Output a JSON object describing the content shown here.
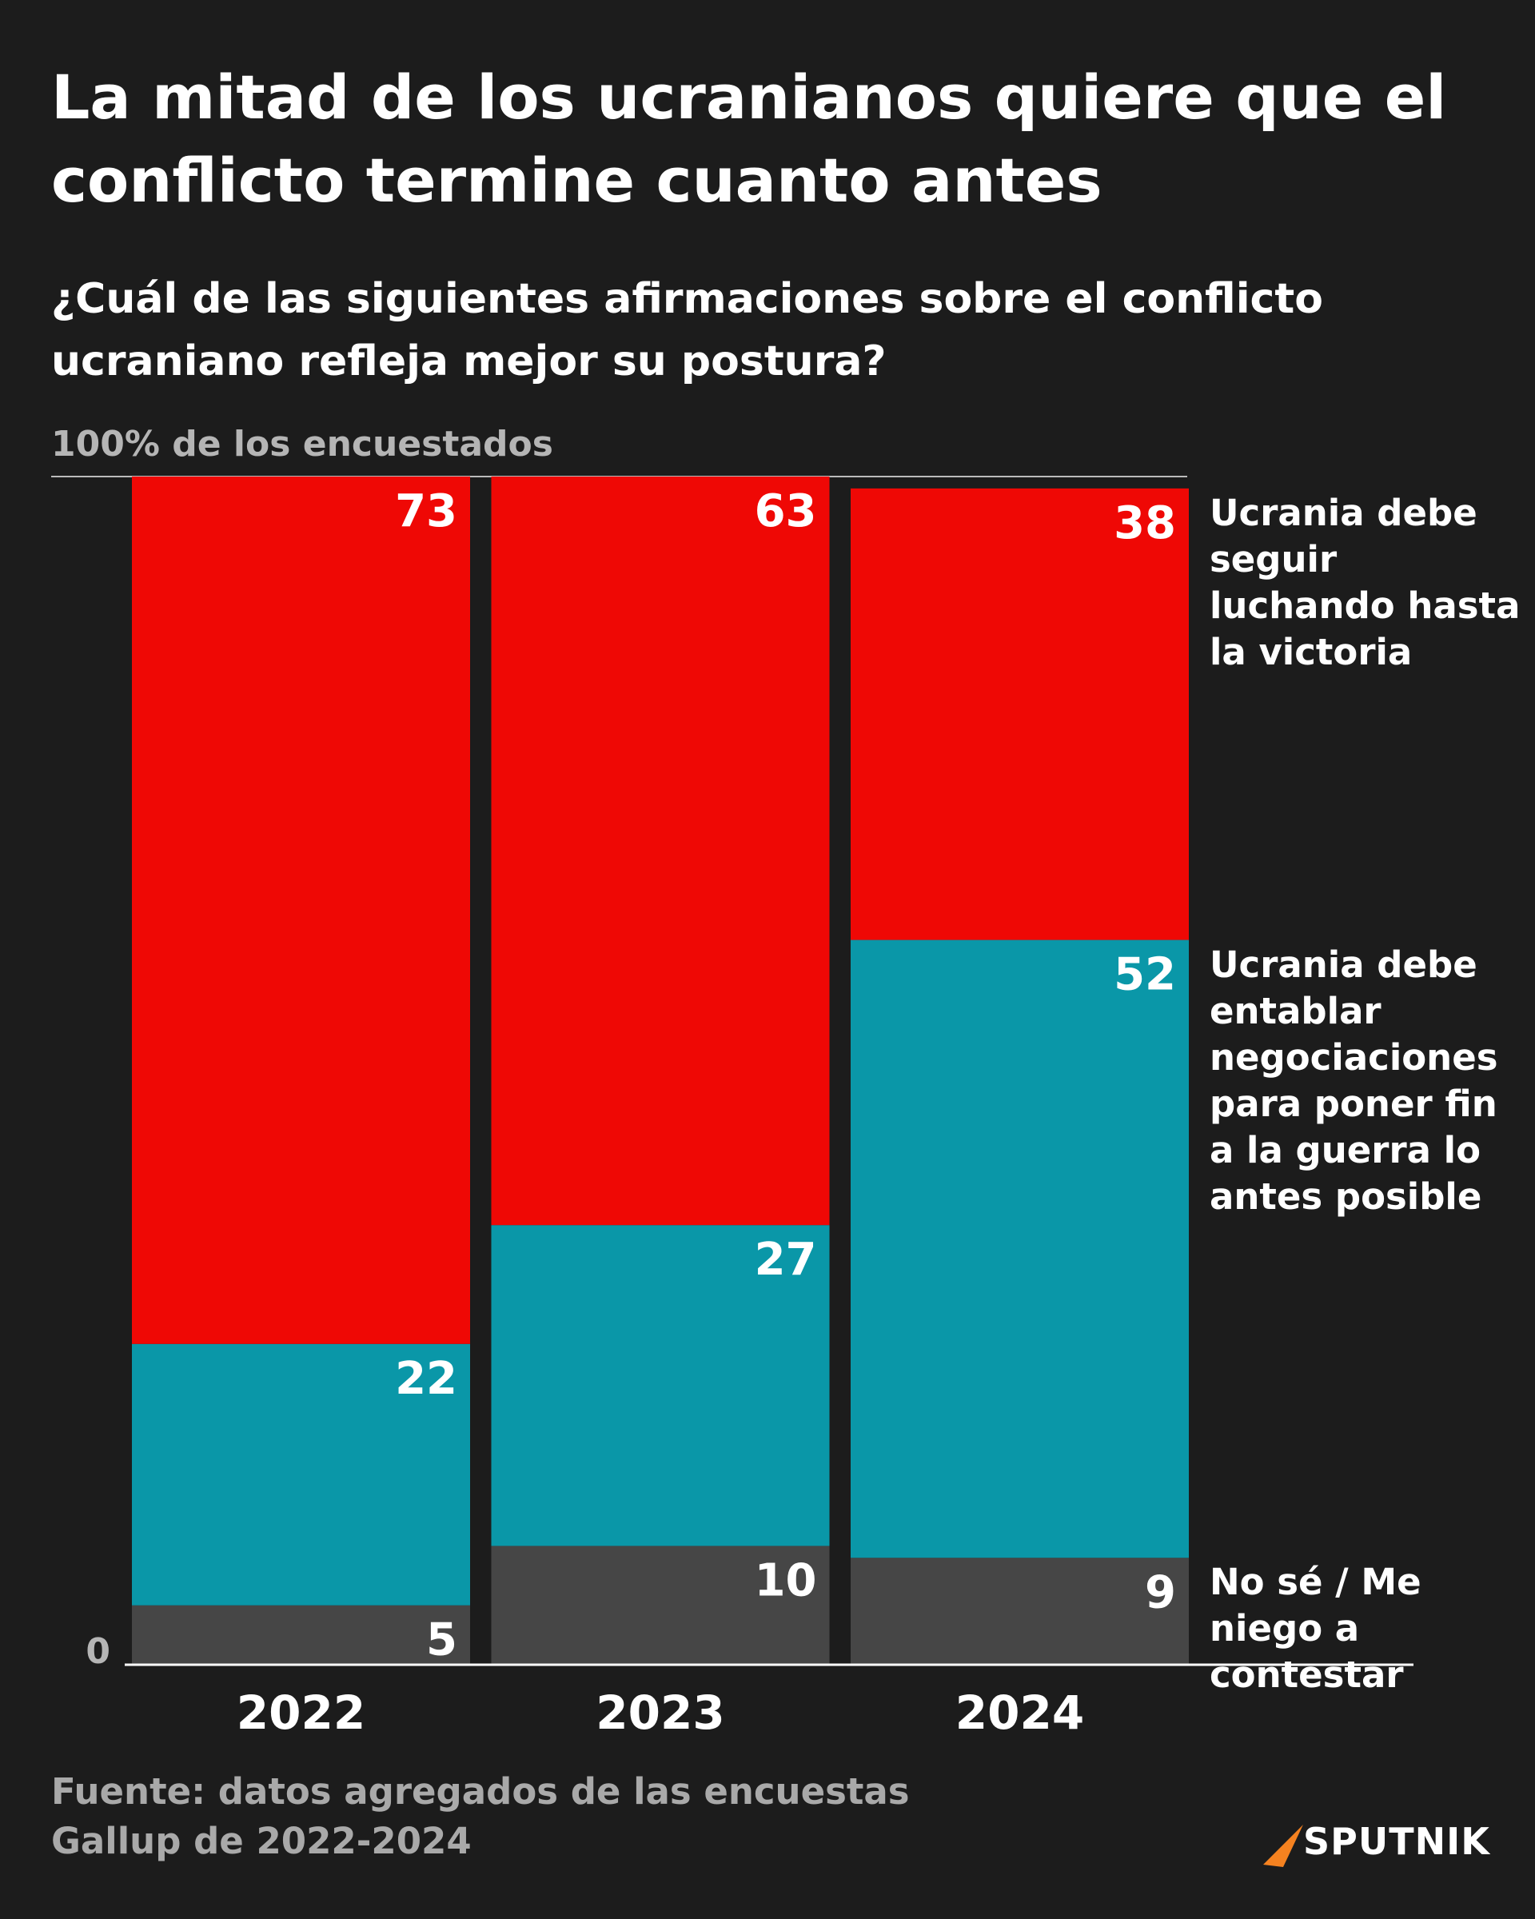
{
  "chart_data": {
    "type": "stacked_bar",
    "title": "La mitad de los ucranianos quiere que el conflicto termine cuanto antes",
    "subtitle": "¿Cuál de las siguientes afirmaciones sobre el conflicto ucraniano refleja mejor su postura?",
    "categories": [
      "2022",
      "2023",
      "2024"
    ],
    "series": [
      {
        "name": "No sé / Me niego a contestar",
        "color": "#464646",
        "values": [
          5,
          10,
          9
        ]
      },
      {
        "name": "Ucrania debe entablar negociaciones para poner fin a la guerra lo antes posible",
        "color": "#0a97a8",
        "values": [
          22,
          27,
          52
        ]
      },
      {
        "name": "Ucrania debe seguir luchando hasta la victoria",
        "color": "#ef0805",
        "values": [
          73,
          63,
          38
        ]
      }
    ],
    "ylim": [
      0,
      100
    ],
    "yticks": [
      0,
      {
        "value": 100,
        "label": "100% de los encuestados"
      }
    ],
    "legend": "right",
    "source": "Fuente: datos agregados de las encuestas Gallup de 2022-2024",
    "brand": "SPUTNIK"
  }
}
